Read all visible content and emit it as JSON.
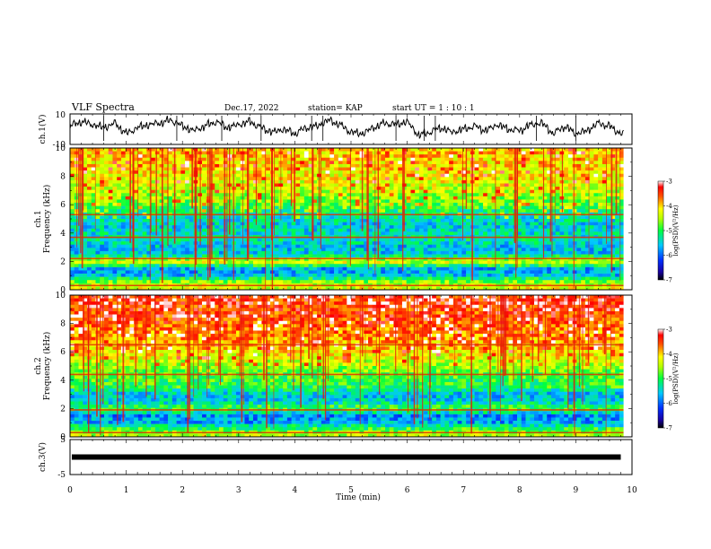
{
  "header": {
    "title": "VLF Spectra",
    "date": "Dec.17, 2022",
    "station": "station= KAP",
    "start": "start UT =  1 : 10 : 1"
  },
  "chart_data": [
    {
      "type": "line",
      "panel": "ch1-waveform",
      "ylabel": "ch.1(V)",
      "ylim": [
        -10,
        10
      ],
      "yticks": [
        "10",
        "-10"
      ],
      "xlim": [
        0,
        10
      ],
      "x": [
        0.0,
        0.2,
        0.4,
        0.6,
        0.8,
        1.0,
        1.2,
        1.4,
        1.6,
        1.8,
        2.0,
        2.2,
        2.4,
        2.6,
        2.8,
        3.0,
        3.2,
        3.4,
        3.6,
        3.8,
        4.0,
        4.2,
        4.4,
        4.6,
        4.8,
        5.0,
        5.2,
        5.4,
        5.6,
        5.8,
        6.0,
        6.2,
        6.4,
        6.6,
        6.8,
        7.0,
        7.2,
        7.4,
        7.6,
        7.8,
        8.0,
        8.2,
        8.4,
        8.6,
        8.8,
        9.0,
        9.2,
        9.4,
        9.6,
        9.8
      ],
      "y": [
        2,
        5,
        3,
        1,
        4,
        -3,
        1,
        3,
        4,
        6,
        2,
        -1,
        2,
        5,
        1,
        3,
        5,
        1,
        -2,
        0,
        -3,
        1,
        2,
        6,
        3,
        -2,
        -3,
        1,
        4,
        3,
        5,
        -4,
        -2,
        1,
        -2,
        0,
        2,
        -1,
        3,
        0,
        -1,
        3,
        4,
        -3,
        2,
        -3,
        -1,
        4,
        2,
        -3
      ]
    },
    {
      "type": "heatmap",
      "panel": "ch1-spectrogram",
      "ylabel": "ch.1\nFrequency (kHz)",
      "ylim": [
        0,
        10
      ],
      "xlim": [
        0,
        10
      ],
      "yticks": [
        "0",
        "2",
        "4",
        "6",
        "8",
        "10"
      ],
      "colorbar": {
        "label": "log(PSD)(V²/Hz)",
        "range": [
          -7,
          -3
        ],
        "ticks": [
          "-3",
          "-4",
          "-5",
          "-6",
          "-7"
        ]
      },
      "profile_freq_khz": [
        0,
        0.5,
        1,
        1.5,
        2,
        2.5,
        3,
        3.5,
        4,
        4.5,
        5,
        5.5,
        6,
        6.5,
        7,
        7.5,
        8,
        8.5,
        9,
        9.5,
        10
      ],
      "profile_log_psd": [
        -4.2,
        -4.5,
        -5.6,
        -5.7,
        -4.2,
        -5.5,
        -5.6,
        -5.3,
        -5.4,
        -5.5,
        -5.4,
        -5.1,
        -4.8,
        -4.6,
        -4.4,
        -4.3,
        -4.2,
        -4.1,
        -4.1,
        -4.0,
        -4.0
      ],
      "bands_khz": [
        0.3,
        2.2,
        3.7,
        5.3
      ]
    },
    {
      "type": "heatmap",
      "panel": "ch2-spectrogram",
      "ylabel": "ch.2\nFrequency (kHz)",
      "ylim": [
        0,
        10
      ],
      "xlim": [
        0,
        10
      ],
      "yticks": [
        "0",
        "2",
        "4",
        "6",
        "8",
        "10"
      ],
      "colorbar": {
        "label": "log(PSD)(V²/Hz)",
        "range": [
          -7,
          -3
        ],
        "ticks": [
          "-3",
          "-4",
          "-5",
          "-6",
          "-7"
        ]
      },
      "profile_freq_khz": [
        0,
        0.5,
        1,
        1.5,
        2,
        2.5,
        3,
        3.5,
        4,
        4.5,
        5,
        5.5,
        6,
        6.5,
        7,
        7.5,
        8,
        8.5,
        9,
        9.5,
        10
      ],
      "profile_log_psd": [
        -4.3,
        -4.8,
        -5.7,
        -5.8,
        -4.8,
        -5.5,
        -5.6,
        -5.0,
        -4.9,
        -4.8,
        -4.5,
        -4.3,
        -4.1,
        -3.9,
        -3.8,
        -3.7,
        -3.6,
        -3.5,
        -3.5,
        -3.4,
        -3.4
      ],
      "bands_khz": [
        0.3,
        1.9,
        4.4,
        6.5
      ]
    },
    {
      "type": "line",
      "panel": "ch3-waveform",
      "ylabel": "ch.3(V)",
      "ylim": [
        -5,
        5
      ],
      "yticks": [
        "5",
        "-5"
      ],
      "xlim": [
        0,
        10
      ],
      "x": [
        0,
        9.8
      ],
      "y": [
        0,
        0
      ],
      "xlabel": "Time (min)",
      "xticks": [
        "0",
        "1",
        "2",
        "3",
        "4",
        "5",
        "6",
        "7",
        "8",
        "9",
        "10"
      ]
    }
  ]
}
